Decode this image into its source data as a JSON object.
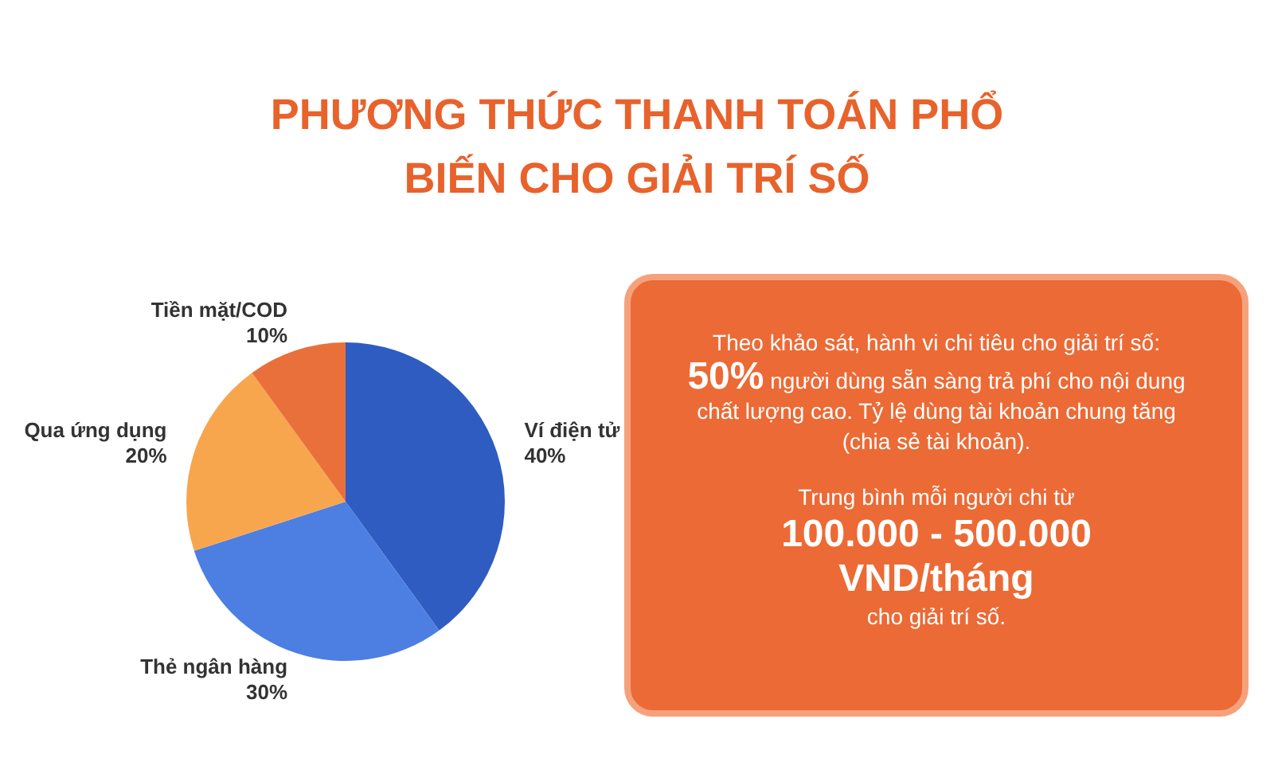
{
  "chart_data": {
    "type": "pie",
    "title": "PHƯƠNG THỨC THANH TOÁN PHỔ BIẾN CHO GIẢI TRÍ SỐ",
    "categories": [
      "Ví điện tử",
      "Thẻ ngân hàng",
      "Qua ứng dụng",
      "Tiền mặt/COD"
    ],
    "values": [
      40,
      30,
      20,
      10
    ],
    "value_labels": [
      "40%",
      "30%",
      "20%",
      "10%"
    ],
    "colors": [
      "#2f5cc0",
      "#4d7fe2",
      "#f8a64e",
      "#e9703a"
    ],
    "annotations": [
      "Theo khảo sát, hành vi chi tiêu cho giải trí số:",
      "50%",
      "người dùng sẵn sàng trả phí cho nội dung chất lượng cao. Tỷ lệ dùng tài khoản chung tăng (chia sẻ tài khoản).",
      "Trung bình mỗi người chi từ",
      "100.000 - 500.000 VND/tháng",
      "cho giải trí số."
    ]
  }
}
